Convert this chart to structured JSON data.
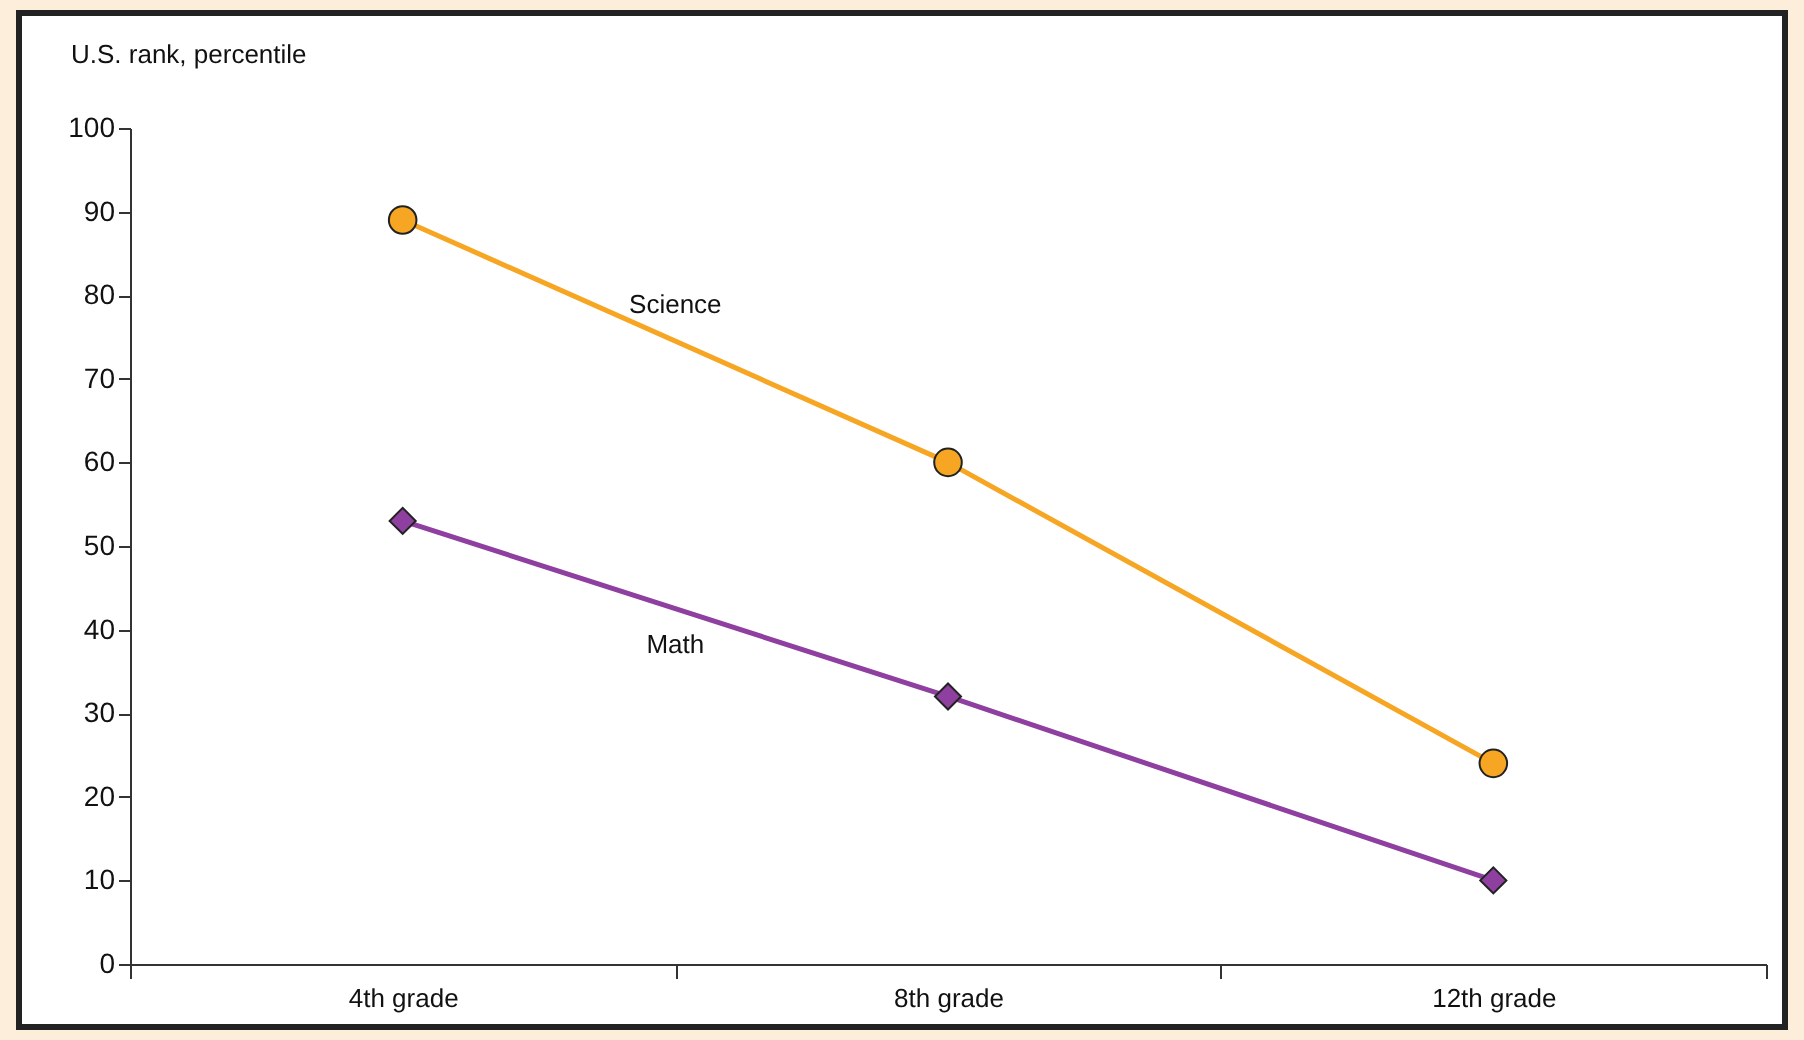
{
  "chart_data": {
    "type": "line",
    "ylabel": "U.S. rank, percentile",
    "categories": [
      "4th grade",
      "8th grade",
      "12th grade"
    ],
    "series": [
      {
        "name": "Science",
        "color": "#f6a623",
        "marker": "circle",
        "values": [
          89,
          60,
          24
        ]
      },
      {
        "name": "Math",
        "color": "#8e3fa0",
        "marker": "diamond",
        "values": [
          53,
          32,
          10
        ]
      }
    ],
    "ylim": [
      0,
      100
    ],
    "yticks": [
      0,
      10,
      20,
      30,
      40,
      50,
      60,
      70,
      80,
      90,
      100
    ],
    "grid": false
  }
}
